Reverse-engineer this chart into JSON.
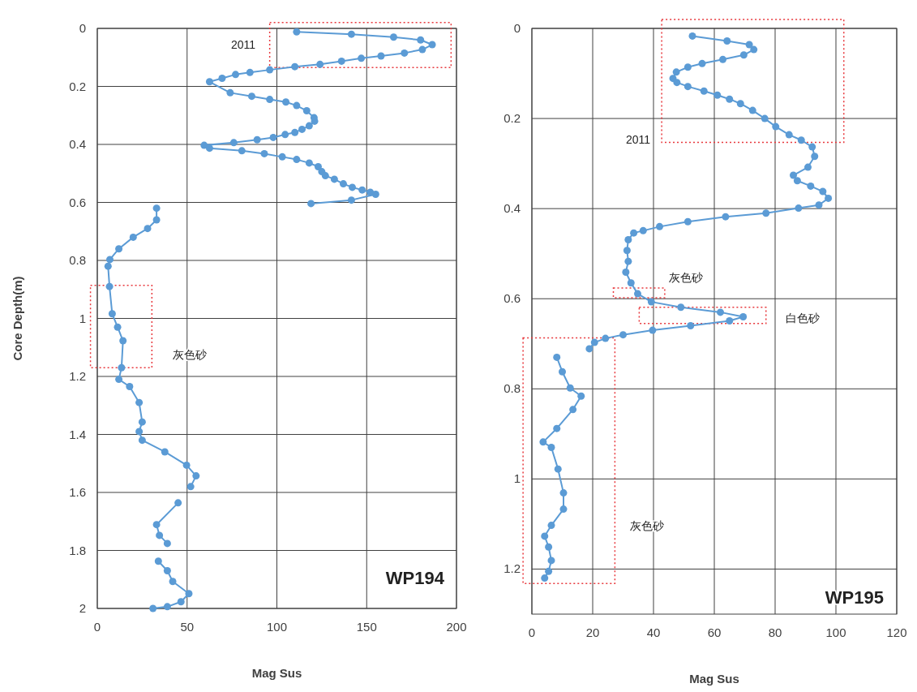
{
  "chart_data": [
    {
      "type": "line",
      "xlabel": "Mag Sus",
      "ylabel": "Core Depth(m)",
      "marker": "circle",
      "grid": true,
      "xlim": [
        0,
        200
      ],
      "xticks": [
        0,
        50,
        100,
        150,
        200
      ],
      "ylim": [
        2,
        0
      ],
      "yticks": [
        0,
        0.2,
        0.4,
        0.6,
        0.8,
        1,
        1.2,
        1.4,
        1.6,
        1.8,
        2
      ],
      "annotations": [
        "2011",
        "灰色砂",
        "WP194"
      ],
      "series": [
        {
          "color": "#5b9bd5",
          "x": [
            111,
            141.5,
            165,
            180,
            186.5,
            181,
            171,
            158,
            147,
            136,
            124,
            110,
            96,
            85,
            77,
            69.5,
            62.5,
            74,
            86,
            96,
            105,
            111,
            116.6,
            120.7,
            121,
            118,
            114,
            110,
            104.6,
            98,
            89,
            76,
            59.5,
            62.5,
            80.5,
            93,
            103,
            111,
            118,
            123,
            125,
            127,
            132,
            137,
            142,
            147.5,
            152,
            155,
            141.5,
            119,
            null,
            33,
            33,
            28,
            20,
            12,
            7,
            6,
            6.8,
            8.3,
            11.3,
            14.3,
            13.5,
            12,
            18,
            23.3,
            25,
            23.3,
            25,
            37.6,
            49.7,
            55,
            52,
            null,
            45,
            33,
            34.6,
            39,
            null,
            34,
            39,
            42,
            51,
            46.6,
            39,
            31
          ],
          "values": [
            0.012,
            0.02,
            0.03,
            0.04,
            0.056,
            0.073,
            0.085,
            0.095,
            0.103,
            0.113,
            0.124,
            0.132,
            0.143,
            0.152,
            0.159,
            0.172,
            0.184,
            0.222,
            0.234,
            0.245,
            0.254,
            0.266,
            0.284,
            0.308,
            0.32,
            0.336,
            0.348,
            0.359,
            0.366,
            0.376,
            0.384,
            0.394,
            0.403,
            0.413,
            0.422,
            0.432,
            0.443,
            0.452,
            0.464,
            0.477,
            0.494,
            0.508,
            0.52,
            0.536,
            0.548,
            0.557,
            0.565,
            0.572,
            0.592,
            0.604,
            null,
            0.62,
            0.66,
            0.69,
            0.72,
            0.76,
            0.797,
            0.82,
            0.89,
            0.984,
            1.03,
            1.077,
            1.17,
            1.21,
            1.235,
            1.29,
            1.357,
            1.39,
            1.42,
            1.46,
            1.506,
            1.543,
            1.58,
            null,
            1.636,
            1.711,
            1.748,
            1.776,
            null,
            1.837,
            1.87,
            1.907,
            1.949,
            1.977,
            1.994,
            2.0
          ]
        }
      ]
    },
    {
      "type": "line",
      "xlabel": "Mag Sus",
      "marker": "circle",
      "grid": true,
      "xlim": [
        0,
        120
      ],
      "xticks": [
        0,
        20,
        40,
        60,
        80,
        100,
        120
      ],
      "ylim": [
        1.3,
        0
      ],
      "yticks": [
        0,
        0.2,
        0.4,
        0.6,
        0.8,
        1,
        1.2
      ],
      "annotations": [
        "2011",
        "灰色砂",
        "白色砂",
        "灰色砂",
        "WP195"
      ],
      "series": [
        {
          "color": "#5b9bd5",
          "x": [
            52.8,
            64.2,
            71.5,
            73,
            69.7,
            62.8,
            56,
            51.3,
            47.5,
            46.4,
            47.7,
            51.3,
            56.6,
            61,
            65,
            68.6,
            72.6,
            76.6,
            80.2,
            84.6,
            88.6,
            92.2,
            93,
            90.8,
            86,
            87.3,
            91.7,
            95.7,
            97.5,
            94.4,
            87.7,
            77,
            63.7,
            51.3,
            42,
            36.6,
            33.5,
            31.7,
            31.3,
            31.7,
            30.9,
            32.6,
            34.8,
            39.3,
            49,
            62,
            69.5,
            65,
            52.2,
            39.7,
            30,
            24.2,
            20.6,
            18.9,
            null,
            8.2,
            10,
            12.6,
            16.2,
            13.5,
            8.2,
            3.7,
            6.4,
            8.6,
            10.4,
            10.4,
            6.4,
            4.2,
            5.5,
            6.4,
            5.5,
            4.2
          ],
          "values": [
            0.017,
            0.028,
            0.036,
            0.047,
            0.059,
            0.069,
            0.078,
            0.086,
            0.097,
            0.111,
            0.12,
            0.129,
            0.139,
            0.148,
            0.157,
            0.167,
            0.182,
            0.2,
            0.218,
            0.236,
            0.248,
            0.263,
            0.284,
            0.308,
            0.326,
            0.338,
            0.35,
            0.362,
            0.377,
            0.392,
            0.399,
            0.41,
            0.418,
            0.429,
            0.44,
            0.449,
            0.454,
            0.469,
            0.493,
            0.517,
            0.541,
            0.565,
            0.589,
            0.607,
            0.619,
            0.63,
            0.64,
            0.649,
            0.66,
            0.67,
            0.68,
            0.688,
            0.697,
            0.711,
            null,
            0.73,
            0.762,
            0.798,
            0.816,
            0.846,
            0.888,
            0.918,
            0.93,
            0.978,
            1.031,
            1.067,
            1.103,
            1.127,
            1.151,
            1.181,
            1.205,
            1.22
          ]
        }
      ]
    }
  ]
}
